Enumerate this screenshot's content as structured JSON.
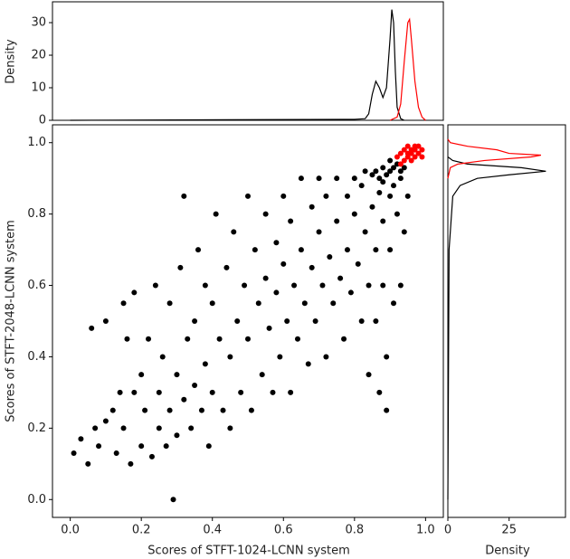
{
  "chart_data": [
    {
      "type": "scatter",
      "xlabel": "Scores of STFT-1024-LCNN system",
      "ylabel": "Scores of STFT-2048-LCNN system",
      "xlim": [
        -0.05,
        1.05
      ],
      "ylim": [
        -0.05,
        1.05
      ],
      "xticks": [
        {
          "value": 0,
          "label": "0.0"
        },
        0.2,
        0.4,
        0.6,
        0.8,
        {
          "value": 1,
          "label": "1.0"
        }
      ],
      "yticks": [
        {
          "value": 0,
          "label": "0.0"
        },
        0.2,
        0.4,
        0.6,
        0.8,
        {
          "value": 1,
          "label": "1.0"
        }
      ],
      "series": [
        {
          "color": "#000000",
          "x": [
            0.01,
            0.03,
            0.05,
            0.06,
            0.07,
            0.08,
            0.1,
            0.1,
            0.12,
            0.13,
            0.14,
            0.15,
            0.15,
            0.16,
            0.17,
            0.18,
            0.18,
            0.2,
            0.2,
            0.21,
            0.22,
            0.23,
            0.24,
            0.25,
            0.25,
            0.26,
            0.27,
            0.28,
            0.28,
            0.29,
            0.3,
            0.3,
            0.31,
            0.32,
            0.32,
            0.33,
            0.34,
            0.35,
            0.35,
            0.36,
            0.37,
            0.38,
            0.38,
            0.39,
            0.4,
            0.4,
            0.41,
            0.42,
            0.43,
            0.44,
            0.45,
            0.45,
            0.46,
            0.47,
            0.48,
            0.49,
            0.5,
            0.5,
            0.51,
            0.52,
            0.53,
            0.54,
            0.55,
            0.55,
            0.56,
            0.57,
            0.58,
            0.58,
            0.59,
            0.6,
            0.6,
            0.61,
            0.62,
            0.62,
            0.63,
            0.64,
            0.65,
            0.65,
            0.66,
            0.67,
            0.68,
            0.68,
            0.69,
            0.7,
            0.7,
            0.71,
            0.72,
            0.72,
            0.73,
            0.74,
            0.75,
            0.75,
            0.76,
            0.77,
            0.78,
            0.78,
            0.79,
            0.8,
            0.8,
            0.81,
            0.82,
            0.82,
            0.83,
            0.84,
            0.84,
            0.85,
            0.85,
            0.86,
            0.86,
            0.87,
            0.87,
            0.88,
            0.88,
            0.89,
            0.89,
            0.9,
            0.9,
            0.9,
            0.91,
            0.91,
            0.92,
            0.92,
            0.93,
            0.93,
            0.94,
            0.94,
            0.95,
            0.88,
            0.89,
            0.86,
            0.83,
            0.9,
            0.88,
            0.91,
            0.87,
            0.93
          ],
          "y": [
            0.13,
            0.17,
            0.1,
            0.48,
            0.2,
            0.15,
            0.5,
            0.22,
            0.25,
            0.13,
            0.3,
            0.55,
            0.2,
            0.45,
            0.1,
            0.3,
            0.58,
            0.35,
            0.15,
            0.25,
            0.45,
            0.12,
            0.6,
            0.3,
            0.2,
            0.4,
            0.15,
            0.55,
            0.25,
            0.0,
            0.35,
            0.18,
            0.65,
            0.85,
            0.28,
            0.45,
            0.2,
            0.5,
            0.32,
            0.7,
            0.25,
            0.6,
            0.38,
            0.15,
            0.55,
            0.3,
            0.8,
            0.45,
            0.25,
            0.65,
            0.4,
            0.2,
            0.75,
            0.5,
            0.3,
            0.6,
            0.85,
            0.45,
            0.25,
            0.7,
            0.55,
            0.35,
            0.8,
            0.62,
            0.48,
            0.3,
            0.72,
            0.58,
            0.4,
            0.85,
            0.66,
            0.5,
            0.3,
            0.78,
            0.6,
            0.45,
            0.9,
            0.7,
            0.55,
            0.38,
            0.82,
            0.65,
            0.5,
            0.9,
            0.75,
            0.6,
            0.4,
            0.85,
            0.68,
            0.55,
            0.9,
            0.78,
            0.62,
            0.45,
            0.85,
            0.7,
            0.58,
            0.9,
            0.8,
            0.66,
            0.5,
            0.88,
            0.75,
            0.6,
            0.35,
            0.91,
            0.82,
            0.7,
            0.5,
            0.3,
            0.9,
            0.78,
            0.6,
            0.4,
            0.25,
            0.92,
            0.85,
            0.7,
            0.55,
            0.93,
            0.8,
            0.94,
            0.6,
            0.92,
            0.75,
            0.93,
            0.85,
            0.93,
            0.91,
            0.92,
            0.92,
            0.95,
            0.89,
            0.88,
            0.86,
            0.9
          ]
        },
        {
          "color": "#ff0000",
          "x": [
            0.92,
            0.93,
            0.94,
            0.95,
            0.96,
            0.97,
            0.98,
            0.99,
            0.95,
            0.94,
            0.96,
            0.97,
            0.98,
            0.93,
            0.99,
            0.95,
            0.96,
            0.97
          ],
          "y": [
            0.96,
            0.97,
            0.95,
            0.97,
            0.98,
            0.96,
            0.99,
            0.98,
            0.99,
            0.98,
            0.95,
            0.99,
            0.97,
            0.94,
            0.96,
            0.96,
            0.97,
            0.98
          ]
        }
      ]
    },
    {
      "type": "line",
      "ylabel": "Density",
      "xlim": [
        -0.05,
        1.05
      ],
      "ylim": [
        0,
        36.4
      ],
      "yticks": [
        0,
        10,
        20,
        30
      ],
      "series": [
        {
          "color": "#000000",
          "x": [
            0.0,
            0.8,
            0.83,
            0.84,
            0.85,
            0.86,
            0.87,
            0.88,
            0.89,
            0.9,
            0.905,
            0.91,
            0.915,
            0.92,
            0.93,
            0.94
          ],
          "y": [
            0,
            0.3,
            0.5,
            2,
            8,
            12,
            10,
            7,
            10,
            25,
            34,
            30,
            15,
            4,
            0.5,
            0
          ]
        },
        {
          "color": "#ff0000",
          "x": [
            0.9,
            0.92,
            0.93,
            0.94,
            0.95,
            0.955,
            0.96,
            0.97,
            0.98,
            0.99,
            1.0
          ],
          "y": [
            0,
            1,
            5,
            18,
            30,
            31,
            25,
            12,
            4,
            1,
            0
          ]
        }
      ]
    },
    {
      "type": "line",
      "orientation": "horizontal",
      "xlabel": "Density",
      "xlim": [
        0,
        48
      ],
      "ylim": [
        -0.05,
        1.05
      ],
      "xticks": [
        0,
        25
      ],
      "series": [
        {
          "color": "#000000",
          "x": [
            0,
            0.5,
            2,
            5,
            12,
            25,
            40,
            30,
            8,
            2,
            0
          ],
          "y": [
            0.0,
            0.7,
            0.85,
            0.88,
            0.9,
            0.91,
            0.92,
            0.93,
            0.94,
            0.95,
            0.96
          ]
        },
        {
          "color": "#ff0000",
          "x": [
            0,
            1,
            4,
            15,
            34,
            38,
            25,
            20,
            8,
            1,
            0
          ],
          "y": [
            0.9,
            0.93,
            0.94,
            0.95,
            0.96,
            0.965,
            0.97,
            0.98,
            0.99,
            1.0,
            1.01
          ]
        }
      ]
    }
  ]
}
